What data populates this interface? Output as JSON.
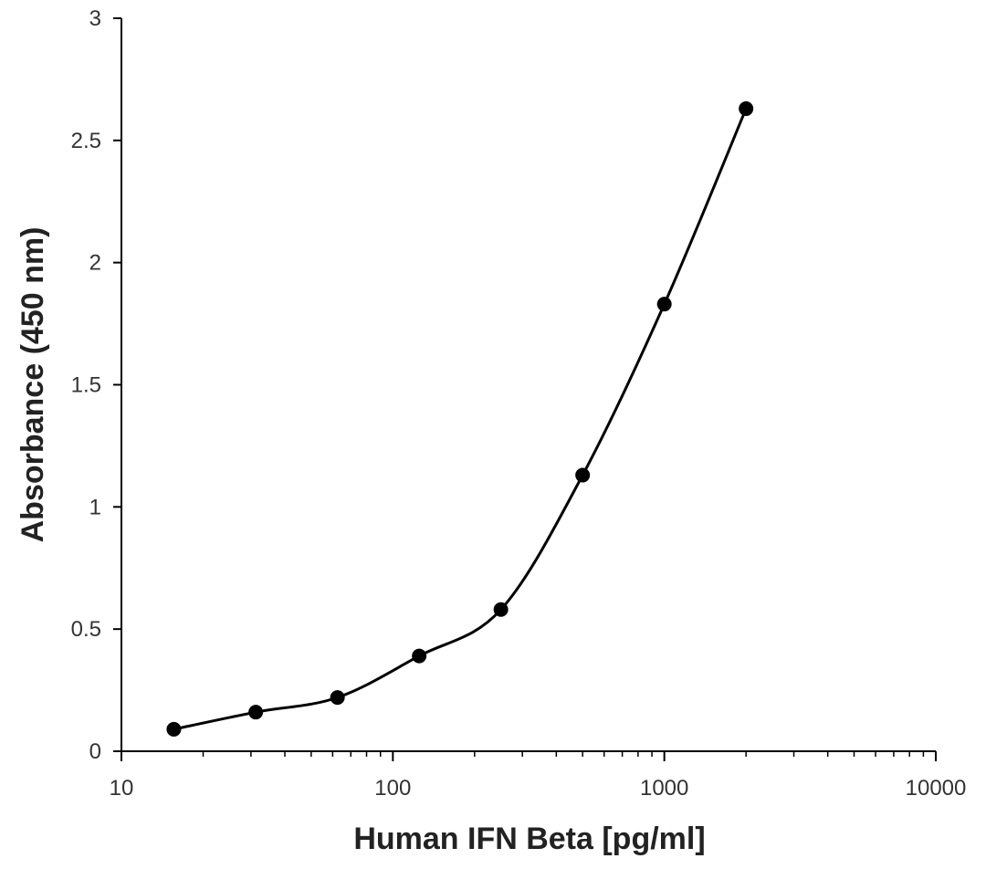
{
  "chart_data": {
    "type": "line",
    "title": "",
    "xlabel": "Human IFN Beta [pg/ml]",
    "ylabel": "Absorbance (450 nm)",
    "xscale": "log",
    "xlim": [
      10,
      10000
    ],
    "ylim": [
      0,
      3
    ],
    "grid": false,
    "x_ticks": [
      10,
      100,
      1000,
      10000
    ],
    "x_tick_labels": [
      "10",
      "100",
      "1000",
      "10000"
    ],
    "y_ticks": [
      0,
      0.5,
      1,
      1.5,
      2,
      2.5,
      3
    ],
    "y_tick_labels": [
      "0",
      "0.5",
      "1",
      "1.5",
      "2",
      "2.5",
      "3"
    ],
    "series": [
      {
        "x": [
          15.6,
          31.25,
          62.5,
          125,
          250,
          500,
          1000,
          2000
        ],
        "y": [
          0.09,
          0.16,
          0.22,
          0.39,
          0.58,
          1.13,
          1.83,
          2.63
        ],
        "color": "#000000",
        "marker": "circle",
        "smooth": true
      }
    ]
  }
}
